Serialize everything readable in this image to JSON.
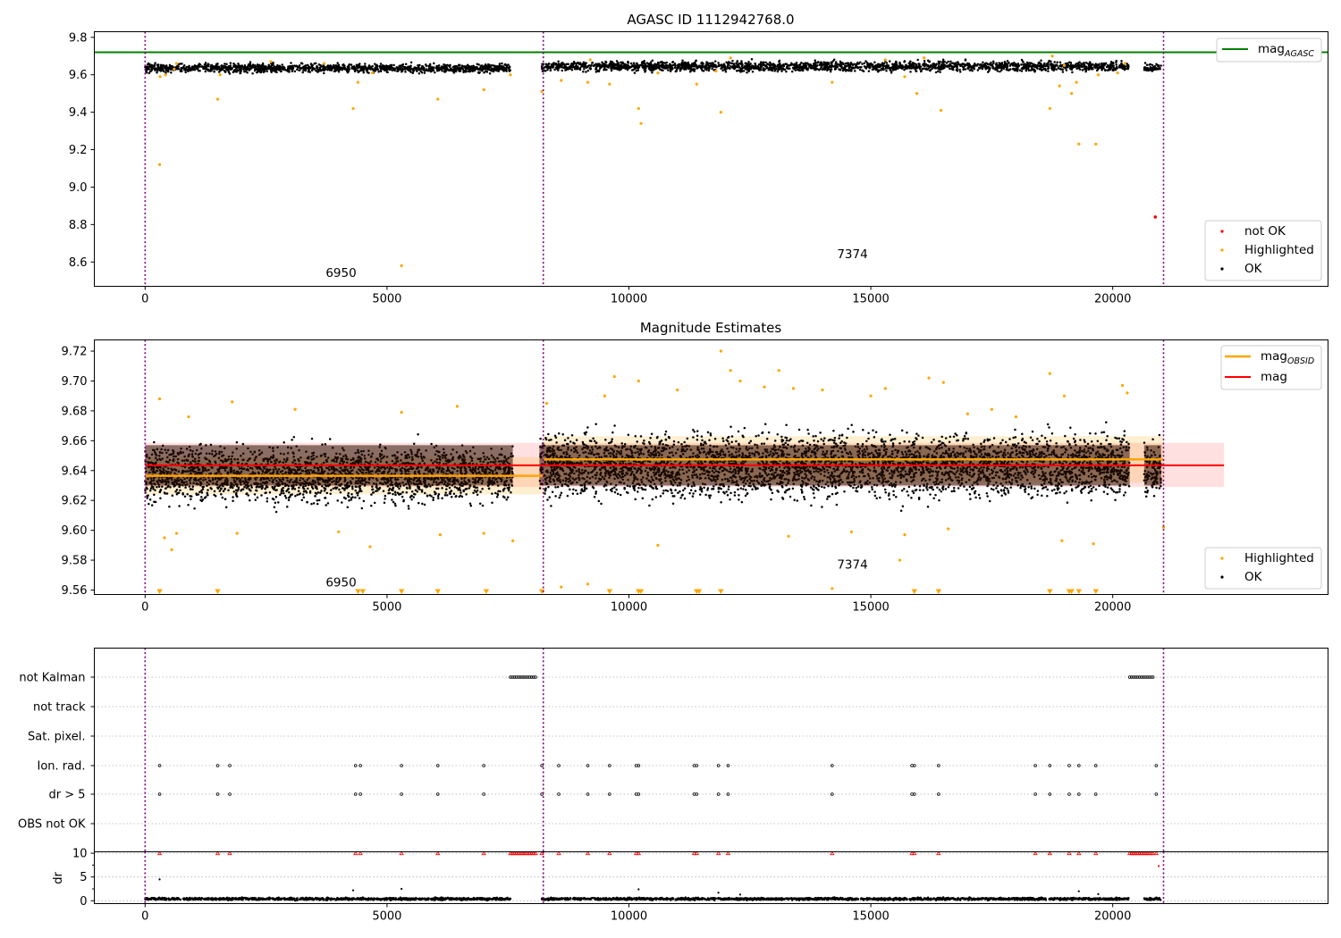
{
  "colors": {
    "agasc": "#008000",
    "not_ok": "#ff0000",
    "highlighted": "#ffa500",
    "ok": "#000000",
    "mag_obsid": "#ffa500",
    "mag": "#ff0000",
    "obsid_boundary": "#800080",
    "dr_flag": "#ff0000"
  },
  "chart_data": [
    {
      "id": "top",
      "type": "scatter",
      "title": "AGASC ID 1112942768.0",
      "xlim": [
        -1050,
        24450
      ],
      "ylim": [
        8.47,
        9.83
      ],
      "xticks": [
        0,
        5000,
        10000,
        15000,
        20000
      ],
      "yticks": [
        8.6,
        8.8,
        9.0,
        9.2,
        9.4,
        9.6,
        9.8
      ],
      "ytick_labels": [
        "8.6",
        "8.8",
        "9.0",
        "9.2",
        "9.4",
        "9.6",
        "9.8"
      ],
      "grid": false,
      "hlines": [
        {
          "name": "mag_AGASC",
          "y": 9.72,
          "color": "#008000"
        }
      ],
      "obsid_boundaries": [
        0,
        8230,
        21050
      ],
      "ok_bands": [
        {
          "x": [
            0,
            7550
          ],
          "y": [
            9.6,
            9.67
          ]
        },
        {
          "x": [
            8200,
            20330
          ],
          "y": [
            9.605,
            9.685
          ]
        },
        {
          "x": [
            20650,
            21000
          ],
          "y": [
            9.61,
            9.665
          ]
        }
      ],
      "highlighted_points": [
        [
          300,
          9.12
        ],
        [
          310,
          9.59
        ],
        [
          420,
          9.6
        ],
        [
          600,
          9.63
        ],
        [
          1500,
          9.47
        ],
        [
          1550,
          9.6
        ],
        [
          4300,
          9.42
        ],
        [
          4400,
          9.56
        ],
        [
          4700,
          9.61
        ],
        [
          5300,
          8.58
        ],
        [
          6050,
          9.47
        ],
        [
          7000,
          9.52
        ],
        [
          7550,
          9.6
        ],
        [
          8200,
          9.51
        ],
        [
          8600,
          9.57
        ],
        [
          9150,
          9.56
        ],
        [
          9600,
          9.55
        ],
        [
          10200,
          9.42
        ],
        [
          10250,
          9.34
        ],
        [
          10600,
          9.61
        ],
        [
          11400,
          9.55
        ],
        [
          11800,
          9.62
        ],
        [
          11900,
          9.4
        ],
        [
          14200,
          9.56
        ],
        [
          15700,
          9.59
        ],
        [
          15950,
          9.5
        ],
        [
          16450,
          9.41
        ],
        [
          18700,
          9.42
        ],
        [
          18900,
          9.54
        ],
        [
          19000,
          9.65
        ],
        [
          19150,
          9.5
        ],
        [
          19250,
          9.56
        ],
        [
          19300,
          9.23
        ],
        [
          19650,
          9.23
        ],
        [
          19700,
          9.6
        ],
        [
          20100,
          9.61
        ],
        [
          20250,
          9.66
        ],
        [
          9200,
          9.68
        ],
        [
          12100,
          9.69
        ],
        [
          15300,
          9.68
        ],
        [
          16100,
          9.69
        ],
        [
          18750,
          9.7
        ],
        [
          2600,
          9.67
        ],
        [
          3700,
          9.66
        ],
        [
          650,
          9.66
        ]
      ],
      "not_ok_points": [
        [
          20880,
          8.84
        ]
      ],
      "annotations": [
        {
          "text": "6950",
          "x": 4050,
          "y": 8.52
        },
        {
          "text": "7374",
          "x": 14620,
          "y": 8.62
        }
      ],
      "legend": {
        "placement": "top-right",
        "entries": [
          "mag_AGASC"
        ]
      },
      "legend2": {
        "placement": "lower-right",
        "entries": [
          "not OK",
          "Highlighted",
          "OK"
        ]
      }
    },
    {
      "id": "middle",
      "type": "scatter",
      "title": "Magnitude Estimates",
      "xlim": [
        -1050,
        24450
      ],
      "ylim": [
        9.557,
        9.7275
      ],
      "xticks": [
        0,
        5000,
        10000,
        15000,
        20000
      ],
      "yticks": [
        9.56,
        9.58,
        9.6,
        9.62,
        9.64,
        9.66,
        9.68,
        9.7,
        9.72
      ],
      "ytick_labels": [
        "9.56",
        "9.58",
        "9.60",
        "9.62",
        "9.64",
        "9.66",
        "9.68",
        "9.70",
        "9.72"
      ],
      "grid": false,
      "obsid_boundaries": [
        0,
        8230,
        21050
      ],
      "ok_bands": [
        {
          "x": [
            0,
            7600
          ],
          "y": [
            9.61,
            9.665
          ]
        },
        {
          "x": [
            8150,
            20350
          ],
          "y": [
            9.612,
            9.675
          ]
        },
        {
          "x": [
            20650,
            21000
          ],
          "y": [
            9.615,
            9.665
          ]
        }
      ],
      "mag_band": {
        "x": [
          0,
          22300
        ],
        "y": [
          9.629,
          9.6585
        ],
        "mean": 9.6435
      },
      "obsid_segments": [
        {
          "obsid": "6950",
          "x": [
            0,
            8230
          ],
          "mean": 9.6365,
          "band": [
            9.624,
            9.649
          ]
        },
        {
          "obsid": "7374",
          "x": [
            8230,
            21050
          ],
          "mean": 9.6475,
          "band": [
            9.632,
            9.663
          ]
        }
      ],
      "highlighted_points": [
        [
          300,
          9.688
        ],
        [
          400,
          9.595
        ],
        [
          550,
          9.587
        ],
        [
          650,
          9.598
        ],
        [
          900,
          9.676
        ],
        [
          1800,
          9.686
        ],
        [
          1900,
          9.598
        ],
        [
          3100,
          9.681
        ],
        [
          4000,
          9.599
        ],
        [
          4650,
          9.589
        ],
        [
          5300,
          9.679
        ],
        [
          6100,
          9.597
        ],
        [
          6450,
          9.683
        ],
        [
          7000,
          9.598
        ],
        [
          7600,
          9.593
        ],
        [
          8300,
          9.685
        ],
        [
          8600,
          9.562
        ],
        [
          9150,
          9.564
        ],
        [
          9500,
          9.69
        ],
        [
          9700,
          9.703
        ],
        [
          10200,
          9.7
        ],
        [
          10600,
          9.59
        ],
        [
          11000,
          9.694
        ],
        [
          11900,
          9.72
        ],
        [
          12100,
          9.707
        ],
        [
          12300,
          9.7
        ],
        [
          12800,
          9.696
        ],
        [
          13100,
          9.707
        ],
        [
          13300,
          9.596
        ],
        [
          13400,
          9.695
        ],
        [
          14000,
          9.694
        ],
        [
          14600,
          9.599
        ],
        [
          15000,
          9.69
        ],
        [
          15300,
          9.695
        ],
        [
          15600,
          9.58
        ],
        [
          15700,
          9.597
        ],
        [
          16200,
          9.702
        ],
        [
          16500,
          9.699
        ],
        [
          16600,
          9.601
        ],
        [
          17000,
          9.678
        ],
        [
          17500,
          9.681
        ],
        [
          18000,
          9.676
        ],
        [
          18700,
          9.705
        ],
        [
          18950,
          9.593
        ],
        [
          19000,
          9.69
        ],
        [
          19600,
          9.591
        ],
        [
          20200,
          9.697
        ],
        [
          20300,
          9.692
        ],
        [
          21050,
          9.602
        ],
        [
          14200,
          9.561
        ]
      ],
      "clipped_low_points_x": [
        300,
        1500,
        4400,
        4500,
        5300,
        6050,
        7050,
        8200,
        9600,
        10200,
        10250,
        11400,
        11450,
        11900,
        15900,
        16400,
        18700,
        19100,
        19150,
        19300,
        19650
      ],
      "annotations": [
        {
          "text": "6950",
          "x": 4050,
          "y": 9.5624
        },
        {
          "text": "7374",
          "x": 14620,
          "y": 9.5744
        }
      ],
      "legend": {
        "placement": "top-right",
        "entries": [
          "mag_OBSID",
          "mag"
        ]
      },
      "legend2": {
        "placement": "lower-right",
        "entries": [
          "Highlighted",
          "OK"
        ]
      }
    },
    {
      "id": "flags",
      "type": "scatter",
      "xlim": [
        -1050,
        24450
      ],
      "categories": [
        "not Kalman",
        "not track",
        "Sat. pixel.",
        "Ion. rad.",
        "dr > 5",
        "OBS not OK"
      ],
      "grid": true,
      "obsid_boundaries": [
        0,
        8230,
        21050
      ],
      "flag_runs": [
        {
          "category": "not Kalman",
          "x": [
            7550,
            8100
          ]
        },
        {
          "category": "not Kalman",
          "x": [
            20350,
            20850
          ]
        }
      ],
      "flag_points": {
        "Ion. rad.": [
          300,
          1500,
          1750,
          4350,
          4450,
          5300,
          6050,
          7000,
          8200,
          8550,
          9150,
          9600,
          10150,
          10200,
          11350,
          11400,
          11850,
          12050,
          14200,
          15850,
          15900,
          16400,
          18400,
          18700,
          19100,
          19300,
          19650,
          20900
        ],
        "dr > 5": [
          300,
          1500,
          1750,
          4350,
          4450,
          5300,
          6050,
          7000,
          8200,
          8550,
          9150,
          9600,
          10150,
          10200,
          11350,
          11400,
          11850,
          12050,
          14200,
          15850,
          15900,
          16400,
          18400,
          18700,
          19100,
          19300,
          19650,
          20900
        ]
      }
    },
    {
      "id": "dr",
      "type": "scatter",
      "ylabel": "dr",
      "xlim": [
        -1050,
        24450
      ],
      "ylim": [
        -0.6,
        10.3
      ],
      "xticks": [
        0,
        5000,
        10000,
        15000,
        20000
      ],
      "yticks": [
        0,
        5,
        10
      ],
      "ytick_labels": [
        "0",
        "5",
        "10"
      ],
      "grid": true,
      "obsid_boundaries": [
        0,
        8230,
        21050
      ],
      "ok_bands": [
        {
          "x": [
            0,
            7550
          ],
          "y": [
            0.05,
            0.75
          ]
        },
        {
          "x": [
            8200,
            20330
          ],
          "y": [
            0.05,
            0.75
          ]
        },
        {
          "x": [
            20650,
            21000
          ],
          "y": [
            0.05,
            0.75
          ]
        }
      ],
      "clipped_points_x": [
        300,
        1500,
        1750,
        4350,
        4450,
        5300,
        6050,
        7000,
        8200,
        8550,
        9150,
        9600,
        10150,
        10200,
        11350,
        11400,
        11850,
        12050,
        14200,
        15850,
        15900,
        16400,
        18400,
        18700,
        19100,
        19300,
        19650,
        20900
      ],
      "clipped_runs_x": [
        [
          7550,
          8100
        ],
        [
          20350,
          20850
        ]
      ],
      "other_points": [
        [
          300,
          4.5
        ],
        [
          4300,
          2.2
        ],
        [
          5300,
          2.5
        ],
        [
          10200,
          2.4
        ],
        [
          11850,
          1.7
        ],
        [
          19300,
          2.0
        ],
        [
          20950,
          7.3
        ],
        [
          19700,
          1.4
        ],
        [
          12300,
          1.3
        ]
      ]
    }
  ],
  "x_tick_labels": [
    "0",
    "5000",
    "10000",
    "15000",
    "20000"
  ]
}
